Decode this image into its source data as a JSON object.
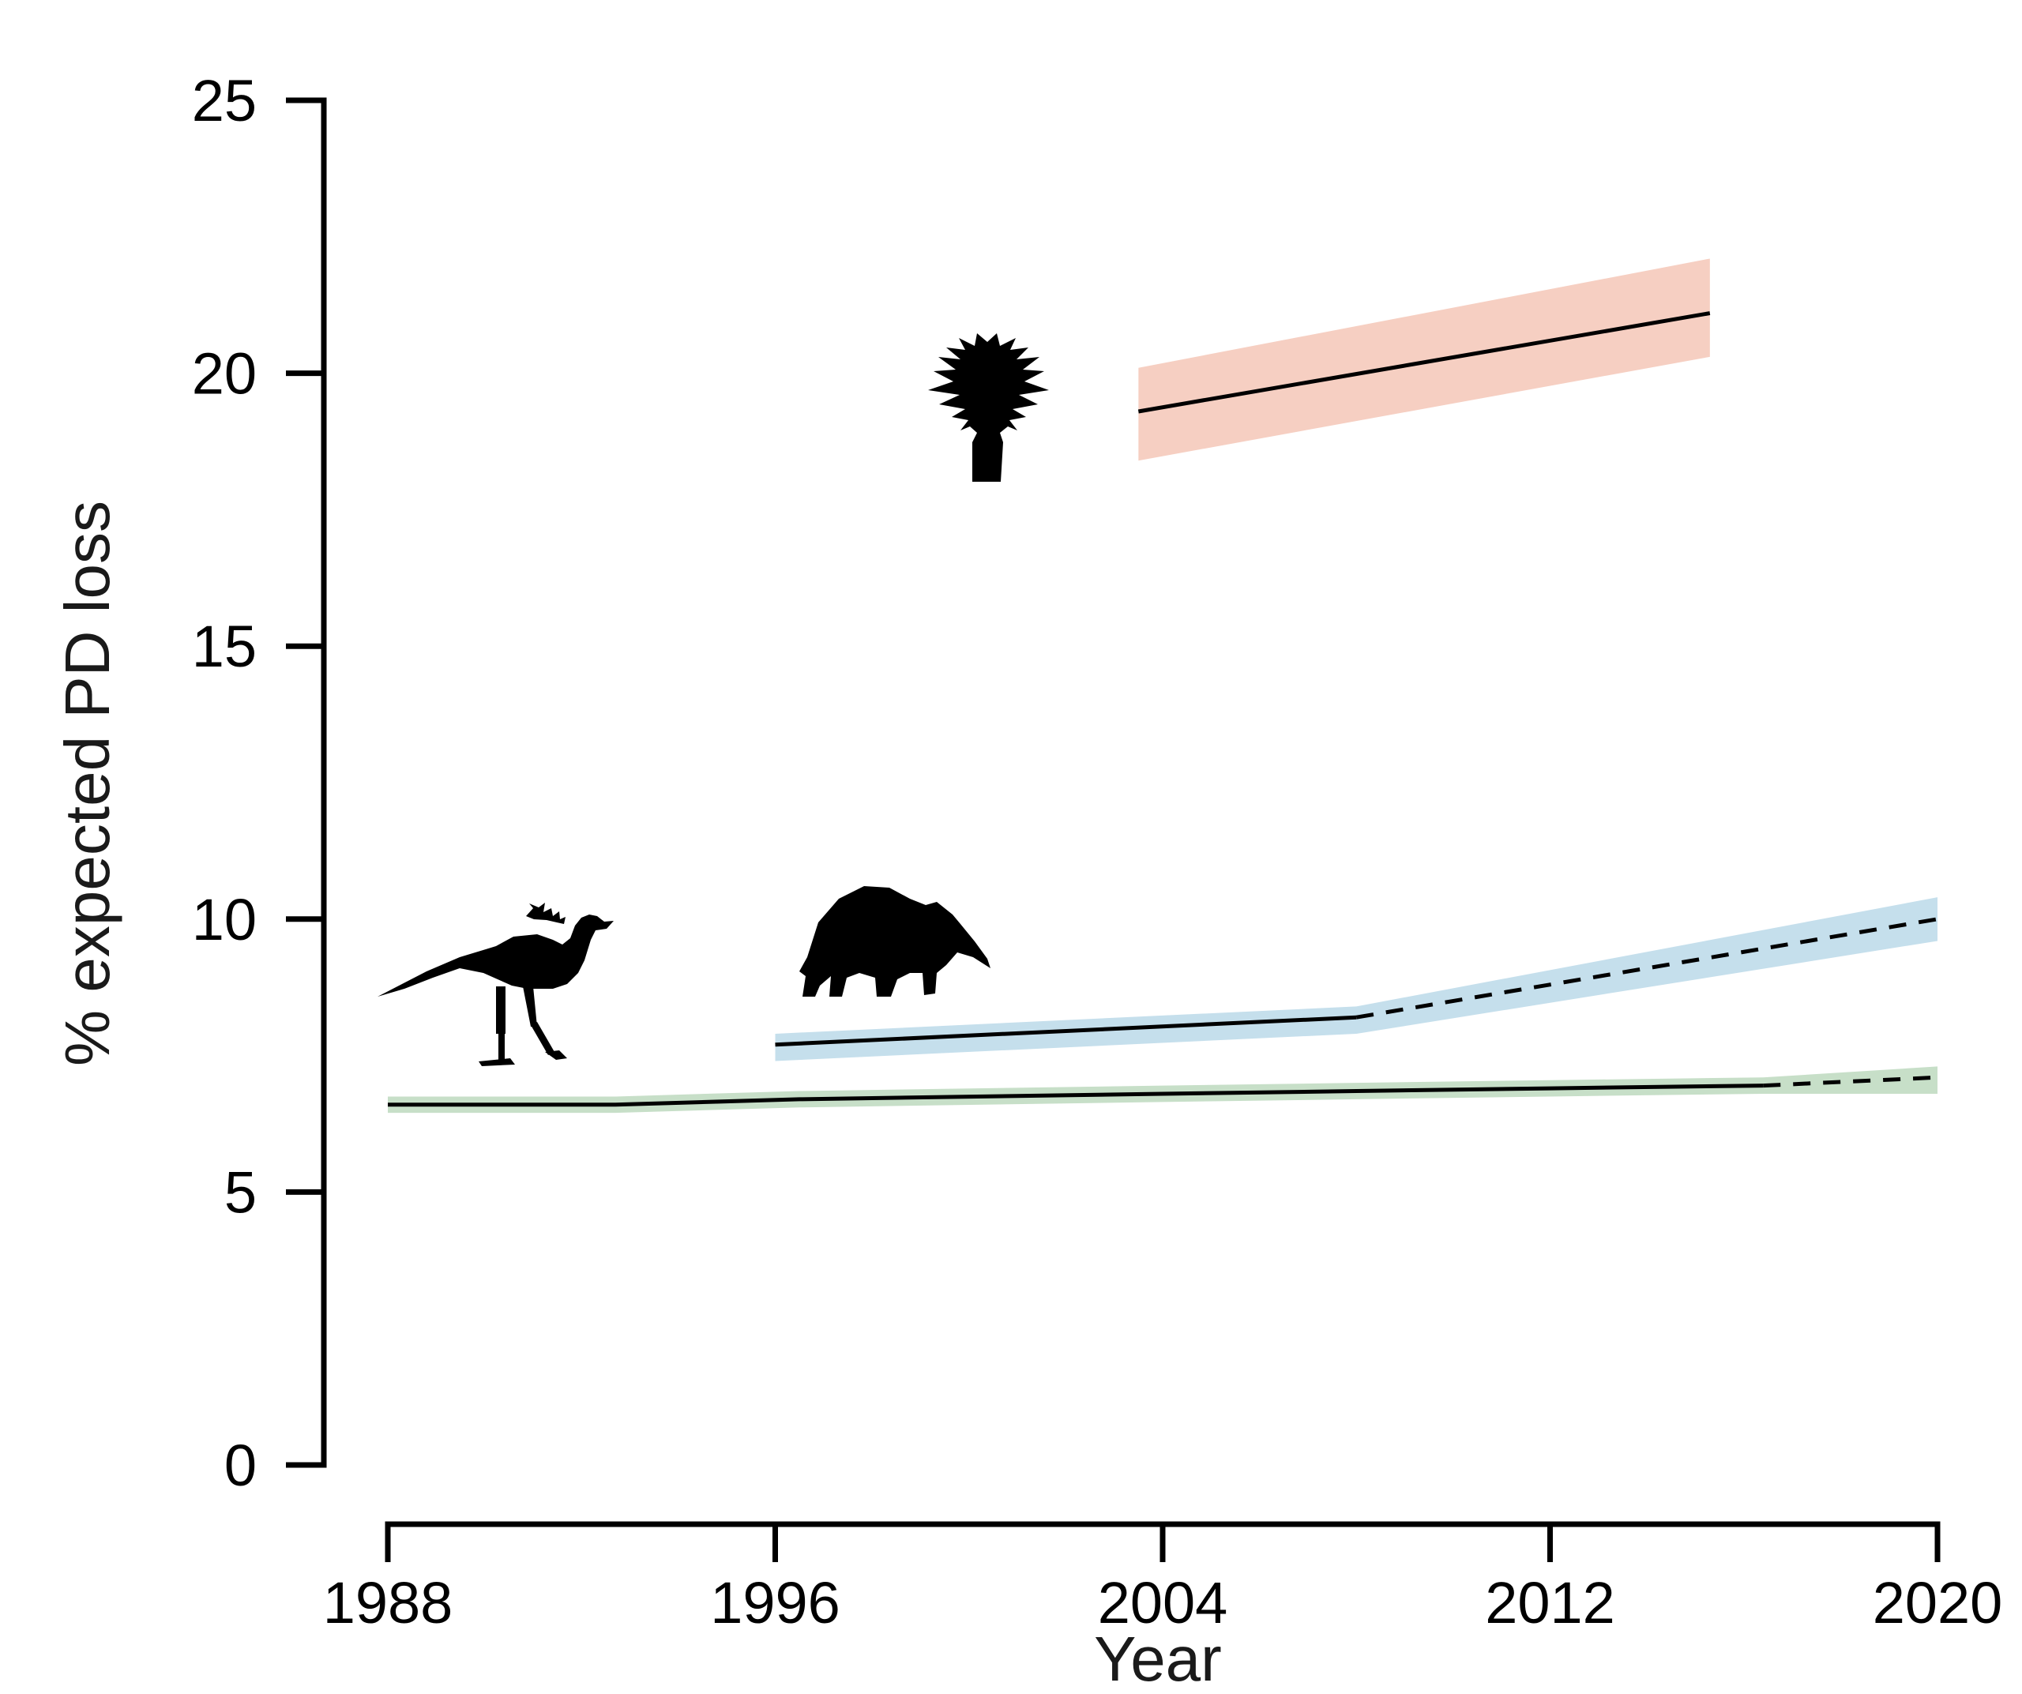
{
  "chart_data": {
    "type": "line",
    "xlabel": "Year",
    "ylabel": "% expected PD loss",
    "xlim": [
      1988,
      2020
    ],
    "ylim": [
      0,
      25
    ],
    "xticks": [
      1988,
      1996,
      2004,
      2012,
      2020
    ],
    "yticks": [
      0,
      5,
      10,
      15,
      20,
      25
    ],
    "grid": false,
    "legend": "none",
    "series": [
      {
        "icon": "cycad-silhouette-icon",
        "color": "#000000",
        "band_color": "#f6cfc2",
        "x": [
          2003.5,
          2015.3
        ],
        "y": [
          19.3,
          21.1
        ],
        "lower": [
          18.4,
          20.3
        ],
        "upper": [
          20.1,
          22.1
        ],
        "projected_from": null
      },
      {
        "icon": "anteater-silhouette-icon",
        "color": "#000000",
        "band_color": "#c5dfec",
        "x": [
          1996,
          2008,
          2020
        ],
        "y": [
          7.7,
          8.2,
          10.0
        ],
        "lower": [
          7.4,
          7.9,
          9.6
        ],
        "upper": [
          7.9,
          8.4,
          10.4
        ],
        "projected_from": 2008
      },
      {
        "icon": "secretary-bird-silhouette-icon",
        "color": "#000000",
        "band_color": "#c7dfc8",
        "x": [
          1988,
          1992.7,
          1996.5,
          2004,
          2008,
          2012,
          2016.4,
          2020
        ],
        "y": [
          6.6,
          6.6,
          6.7,
          6.8,
          6.85,
          6.9,
          6.95,
          7.1
        ],
        "lower": [
          6.45,
          6.45,
          6.55,
          6.65,
          6.7,
          6.75,
          6.8,
          6.8
        ],
        "upper": [
          6.75,
          6.75,
          6.85,
          6.95,
          7.0,
          7.05,
          7.1,
          7.3
        ],
        "projected_from": 2016.4
      }
    ]
  }
}
